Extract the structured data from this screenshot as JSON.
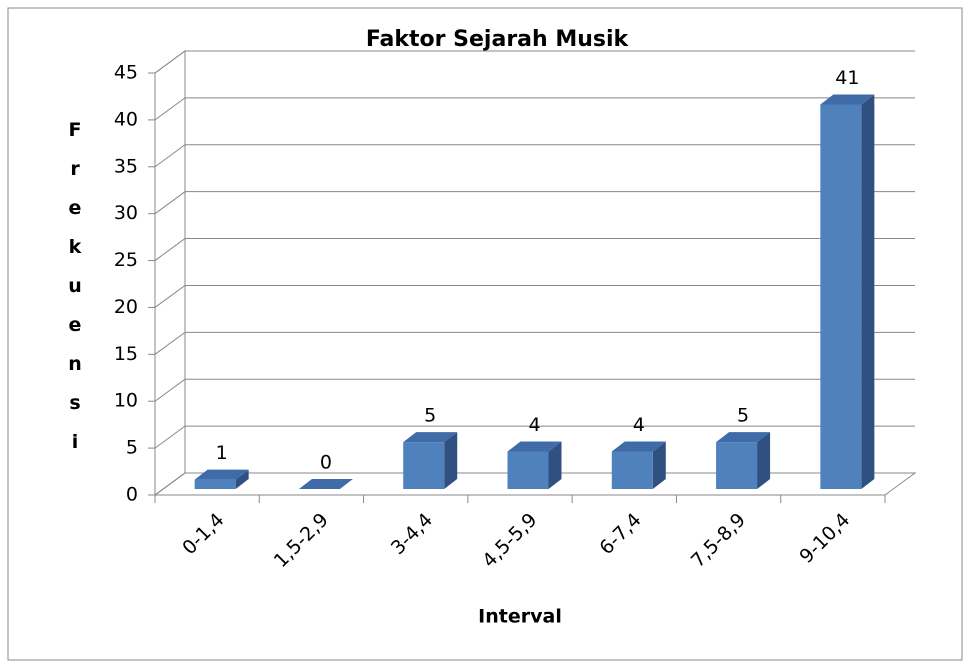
{
  "chart_data": {
    "type": "bar",
    "title": "Faktor Sejarah Musik",
    "x_label": "Interval",
    "y_label": "Frekuensi",
    "categories": [
      "0-1,4",
      "1,5-2,9",
      "3-4,4",
      "4,5-5,9",
      "6-7,4",
      "7,5-8,9",
      "9-10,4"
    ],
    "values": [
      1,
      0,
      5,
      4,
      4,
      5,
      41
    ],
    "color": "#4f81bd",
    "ylim": [
      0,
      45
    ],
    "yticks": [
      0,
      5,
      10,
      15,
      20,
      25,
      30,
      35,
      40,
      45
    ],
    "grid": true
  }
}
